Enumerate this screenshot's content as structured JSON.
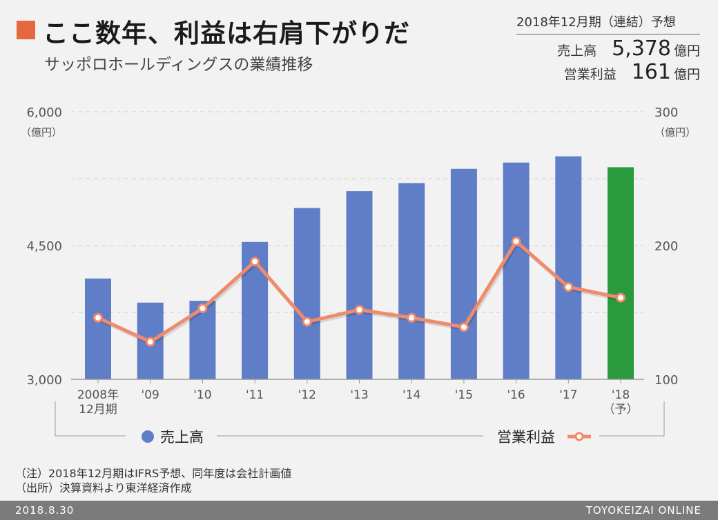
{
  "header": {
    "title": "ここ数年、利益は右肩下がりだ",
    "subtitle": "サッポロホールディングスの業績推移"
  },
  "forecast": {
    "heading": "2018年12月期（連結）予想",
    "sales_label": "売上高",
    "sales_value": "5,378",
    "sales_unit": "億円",
    "profit_label": "営業利益",
    "profit_value": "161",
    "profit_unit": "億円"
  },
  "chart_data": {
    "type": "bar",
    "categories": [
      "2008年\n12月期",
      "'09",
      "'10",
      "'11",
      "'12",
      "'13",
      "'14",
      "'15",
      "'16",
      "'17",
      "'18\n（予）"
    ],
    "series": [
      {
        "name": "売上高",
        "chart_type": "bar",
        "axis": "left",
        "values": [
          4130,
          3860,
          3880,
          4540,
          4920,
          5110,
          5200,
          5360,
          5430,
          5500,
          5378
        ],
        "colors": [
          "#5f7ec7",
          "#5f7ec7",
          "#5f7ec7",
          "#5f7ec7",
          "#5f7ec7",
          "#5f7ec7",
          "#5f7ec7",
          "#5f7ec7",
          "#5f7ec7",
          "#5f7ec7",
          "#2a9a3c"
        ]
      },
      {
        "name": "営業利益",
        "chart_type": "line",
        "axis": "right",
        "values": [
          146,
          128,
          153,
          188,
          143,
          152,
          146,
          139,
          203,
          169,
          161
        ],
        "color": "#f08a6a"
      }
    ],
    "y_left": {
      "ylim": [
        3000,
        6000
      ],
      "ticks": [
        "3,000",
        "4,500",
        "6,000"
      ],
      "tick_values": [
        3000,
        4500,
        6000
      ],
      "unit": "（億円）"
    },
    "y_right": {
      "ylim": [
        100,
        300
      ],
      "ticks": [
        "100",
        "200",
        "300"
      ],
      "tick_values": [
        100,
        200,
        300
      ],
      "unit": "（億円）"
    },
    "grid": true,
    "legend_placement": "bottom"
  },
  "notes": {
    "note1": "（注）2018年12月期はIFRS予想、同年度は会社計画値",
    "note2": "（出所）決算資料より東洋経済作成"
  },
  "footer": {
    "date": "2018.8.30",
    "brand": "TOYOKEIZAI ONLINE"
  },
  "colors": {
    "accent": "#e5673f",
    "bar": "#5f7ec7",
    "bar_forecast": "#2a9a3c",
    "line": "#f08a6a"
  }
}
